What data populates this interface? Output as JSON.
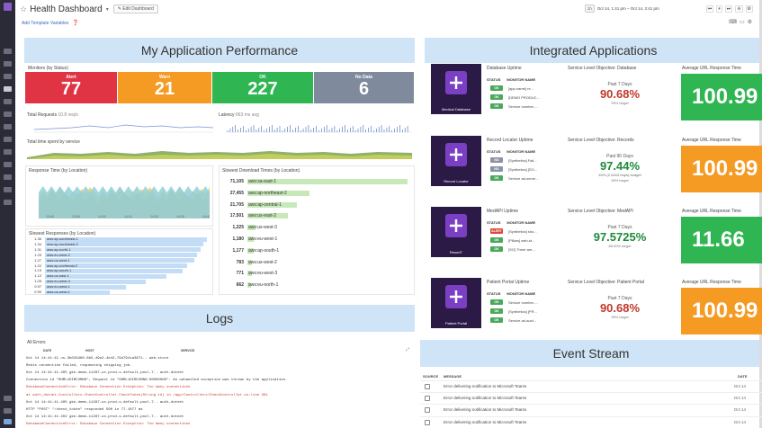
{
  "header": {
    "title": "Health Dashboard",
    "edit_label": "Edit Dashboard",
    "time_zone": "1h",
    "time_range": "Oct 14, 1:41 pm  –  Oct 14, 2:41 pm",
    "add_template": "Add Template Variables"
  },
  "my_app": {
    "banner": "My Application Performance",
    "monitors_title": "Monitors (by Status)",
    "monitors": [
      {
        "label": "Alert",
        "value": "77",
        "color": "#e03444"
      },
      {
        "label": "Warn",
        "value": "21",
        "color": "#f59a23"
      },
      {
        "label": "OK",
        "value": "227",
        "color": "#2fb551"
      },
      {
        "label": "No Data",
        "value": "6",
        "color": "#7f8a9d"
      }
    ],
    "total_requests_label": "Total Requests",
    "total_requests_value": "10.8 req/s",
    "latency_label": "Latency",
    "latency_value": "663 ms avg",
    "total_time_label": "Total time spent by service",
    "response_time_title": "Response Time (by Location)",
    "slowest_download_title": "Slowest Download Times (by Location)",
    "slowest_download": [
      {
        "value": "71,105",
        "name": "aws:sa-east-1",
        "fraction": 1.0
      },
      {
        "value": "27,455",
        "name": "aws:ap-northeast-2",
        "fraction": 0.39
      },
      {
        "value": "21,705",
        "name": "aws:ap-central-1",
        "fraction": 0.31
      },
      {
        "value": "17,501",
        "name": "aws:us-east-2",
        "fraction": 0.25
      },
      {
        "value": "1,225",
        "name": "aws:us-west-3",
        "fraction": 0.05
      },
      {
        "value": "1,180",
        "name": "aws:eu-west-1",
        "fraction": 0.04
      },
      {
        "value": "1,177",
        "name": "aws:ap-south-1",
        "fraction": 0.04
      },
      {
        "value": "783",
        "name": "aws:us-west-2",
        "fraction": 0.03
      },
      {
        "value": "771",
        "name": "aws:eu-west-3",
        "fraction": 0.03
      },
      {
        "value": "662",
        "name": "aws:eu-north-1",
        "fraction": 0.02
      }
    ],
    "slowest_responses_title": "Slowest Responses (by Location)",
    "slowest_responses": [
      {
        "value": "1.36",
        "name": "aws:ap-southeast-1",
        "fraction": 1.0
      },
      {
        "value": "1.34",
        "name": "aws:ap-southeast-2",
        "fraction": 0.98
      },
      {
        "value": "1.31",
        "name": "aws:ap-north-1",
        "fraction": 0.96
      },
      {
        "value": "1.29",
        "name": "aws:eu-west-2",
        "fraction": 0.94
      },
      {
        "value": "1.27",
        "name": "aws:us-west-1",
        "fraction": 0.92
      },
      {
        "value": "1.22",
        "name": "aws:ap-northeast-2",
        "fraction": 0.88
      },
      {
        "value": "1.19",
        "name": "aws:ap-south-1",
        "fraction": 0.85
      },
      {
        "value": "1.12",
        "name": "aws:us-east-1",
        "fraction": 0.75
      },
      {
        "value": "1.05",
        "name": "aws:eu-west-3",
        "fraction": 0.62
      },
      {
        "value": "0.97",
        "name": "aws:eu-west-1",
        "fraction": 0.5
      },
      {
        "value": "0.90",
        "name": "aws:us-west-2",
        "fraction": 0.4
      }
    ]
  },
  "logs": {
    "banner": "Logs",
    "title": "All Errors",
    "headers": {
      "date": "DATE",
      "host": "HOST",
      "service": "SERVICE"
    },
    "lines": [
      {
        "text": "Oct 14 14:41:41  us-3b029460-8b5-49e2-4e42-79d794ia3671..   web-store",
        "color": "#333"
      },
      {
        "text": "Redis connection failed, requeueing shipping job.",
        "color": "#333"
      },
      {
        "text": "Oct 14 14:41:41.405  gke-demo-11287-us-prod-s-default-pool-7..   auth-dotnet",
        "color": "#333"
      },
      {
        "text": "Connection id \"0HML1DIMCUMN0\", Request id \"0HML1DIMCUMN0:00000000\": An unhandled exception was thrown by the application.",
        "color": "#333"
      },
      {
        "text": "DatabaseConnectionError: Database Connection Exception: Too many connections",
        "color": "#c0392b"
      },
      {
        "text": "   at auth_dotnet.Controllers.CheckController.CheckToken(String id) in /app/Controllers/CheckController.cs:line 381",
        "color": "#c0392b"
      },
      {
        "text": "Oct 14 14:41:41.405  gke-demo-11287-us-prod-s-default-pool-7..   auth-dotnet",
        "color": "#333"
      },
      {
        "text": "HTTP \"POST\" \"/check_token\" responded 500 in 77.1077 ms",
        "color": "#333"
      },
      {
        "text": "Oct 14 14:41:41.402  gke-demo-11287-us-prod-s-default-pool-7..   auth-dotnet",
        "color": "#333"
      },
      {
        "text": "DatabaseConnectionError: Database Connection Exception: Too many connections",
        "color": "#c0392b"
      }
    ]
  },
  "integrated": {
    "banner": "Integrated Applications",
    "apps": [
      {
        "icon_label": "Medical Database",
        "monitor_title": "Database Uptime",
        "monitors": [
          {
            "status": "OK",
            "name": "[app.name] re..."
          },
          {
            "status": "OK",
            "name": "[DEMO PRODUC..."
          },
          {
            "status": "OK",
            "name": "Service number-..."
          }
        ],
        "slo_title": "Service Level Objective: Database",
        "period": "Past 7 Days",
        "pct": "90.68%",
        "pct_color": "#c0392b",
        "budget": "",
        "target": "99% target",
        "art_title": "Average URL Response Time",
        "art_value": "100.99",
        "art_color": "#2fb551"
      },
      {
        "icon_label": "Record Locator",
        "monitor_title": "Record Locator Uptime",
        "monitors": [
          {
            "status": "NO DATA",
            "name": "[Synthetics] Fail..."
          },
          {
            "status": "NO DATA",
            "name": "[Synthetics] [SO..."
          },
          {
            "status": "OK",
            "name": "Service ad-serve..."
          }
        ],
        "slo_title": "Service Level Objective: Records",
        "period": "Past 90 Days",
        "pct": "97.44%",
        "pct_color": "#1e8a3a",
        "budget": "49% (2,4444 req/s) budget",
        "target": "95% target",
        "art_title": "Average URL Response Time",
        "art_value": "100.99",
        "art_color": "#f59a23"
      },
      {
        "icon_label": "ResortT",
        "monitor_title": "MedAPI Uptime",
        "monitors": [
          {
            "status": "ALERT",
            "name": "[Synthetics] sho..."
          },
          {
            "status": "OK",
            "name": "[Pillars] web-st..."
          },
          {
            "status": "OK",
            "name": "[SO] There are..."
          }
        ],
        "slo_title": "Service Level Objective: MedAPI",
        "period": "Past 7 Days",
        "pct": "97.5725%",
        "pct_color": "#1e8a3a",
        "budget": "",
        "target": "85.00% target",
        "art_title": "Average URL Response Time",
        "art_value": "11.66",
        "art_color": "#2fb551"
      },
      {
        "icon_label": "Patient Portal",
        "monitor_title": "Patient Portal Uptime",
        "monitors": [
          {
            "status": "OK",
            "name": "Service number-..."
          },
          {
            "status": "OK",
            "name": "[Synthetics] [PR..."
          },
          {
            "status": "OK",
            "name": "Service ad-auct..."
          }
        ],
        "slo_title": "Service Level Objective: Patient Portal",
        "period": "Past 7 Days",
        "pct": "90.68%",
        "pct_color": "#c0392b",
        "budget": "",
        "target": "99% target",
        "art_title": "Average URL Response Time",
        "art_value": "100.99",
        "art_color": "#f59a23"
      }
    ],
    "status_header": "STATUS",
    "name_header": "MONITOR NAME"
  },
  "events": {
    "banner": "Event Stream",
    "headers": {
      "source": "SOURCE",
      "message": "MESSAGE",
      "date": "DATE"
    },
    "rows": [
      {
        "message": "Error delivering notification to Microsoft Teams",
        "date": "Oct 14"
      },
      {
        "message": "Error delivering notification to Microsoft Teams",
        "date": "Oct 14"
      },
      {
        "message": "Error delivering notification to Microsoft Teams",
        "date": "Oct 14"
      },
      {
        "message": "Error delivering notification to Microsoft Teams",
        "date": "Oct 14"
      },
      {
        "message": "Error delivering notification to Microsoft Teams",
        "date": "Oct 14"
      }
    ]
  },
  "chart_data": [
    {
      "type": "bar",
      "title": "Slowest Download Times (by Location)",
      "categories": [
        "aws:sa-east-1",
        "aws:ap-northeast-2",
        "aws:ap-central-1",
        "aws:us-east-2",
        "aws:us-west-3",
        "aws:eu-west-1",
        "aws:ap-south-1",
        "aws:us-west-2",
        "aws:eu-west-3",
        "aws:eu-north-1"
      ],
      "values": [
        71105,
        27455,
        21705,
        17501,
        1225,
        1180,
        1177,
        783,
        771,
        662
      ]
    },
    {
      "type": "area",
      "title": "Response Time (by Location)",
      "x": [
        "13:40",
        "13:50",
        "14:00",
        "14:10",
        "14:20",
        "14:30",
        "14:40"
      ],
      "series": [
        {
          "values": [
            3,
            5,
            2,
            6,
            4,
            6,
            3
          ]
        },
        {
          "values": [
            2,
            3,
            2,
            3,
            2,
            3,
            2
          ]
        }
      ]
    }
  ]
}
